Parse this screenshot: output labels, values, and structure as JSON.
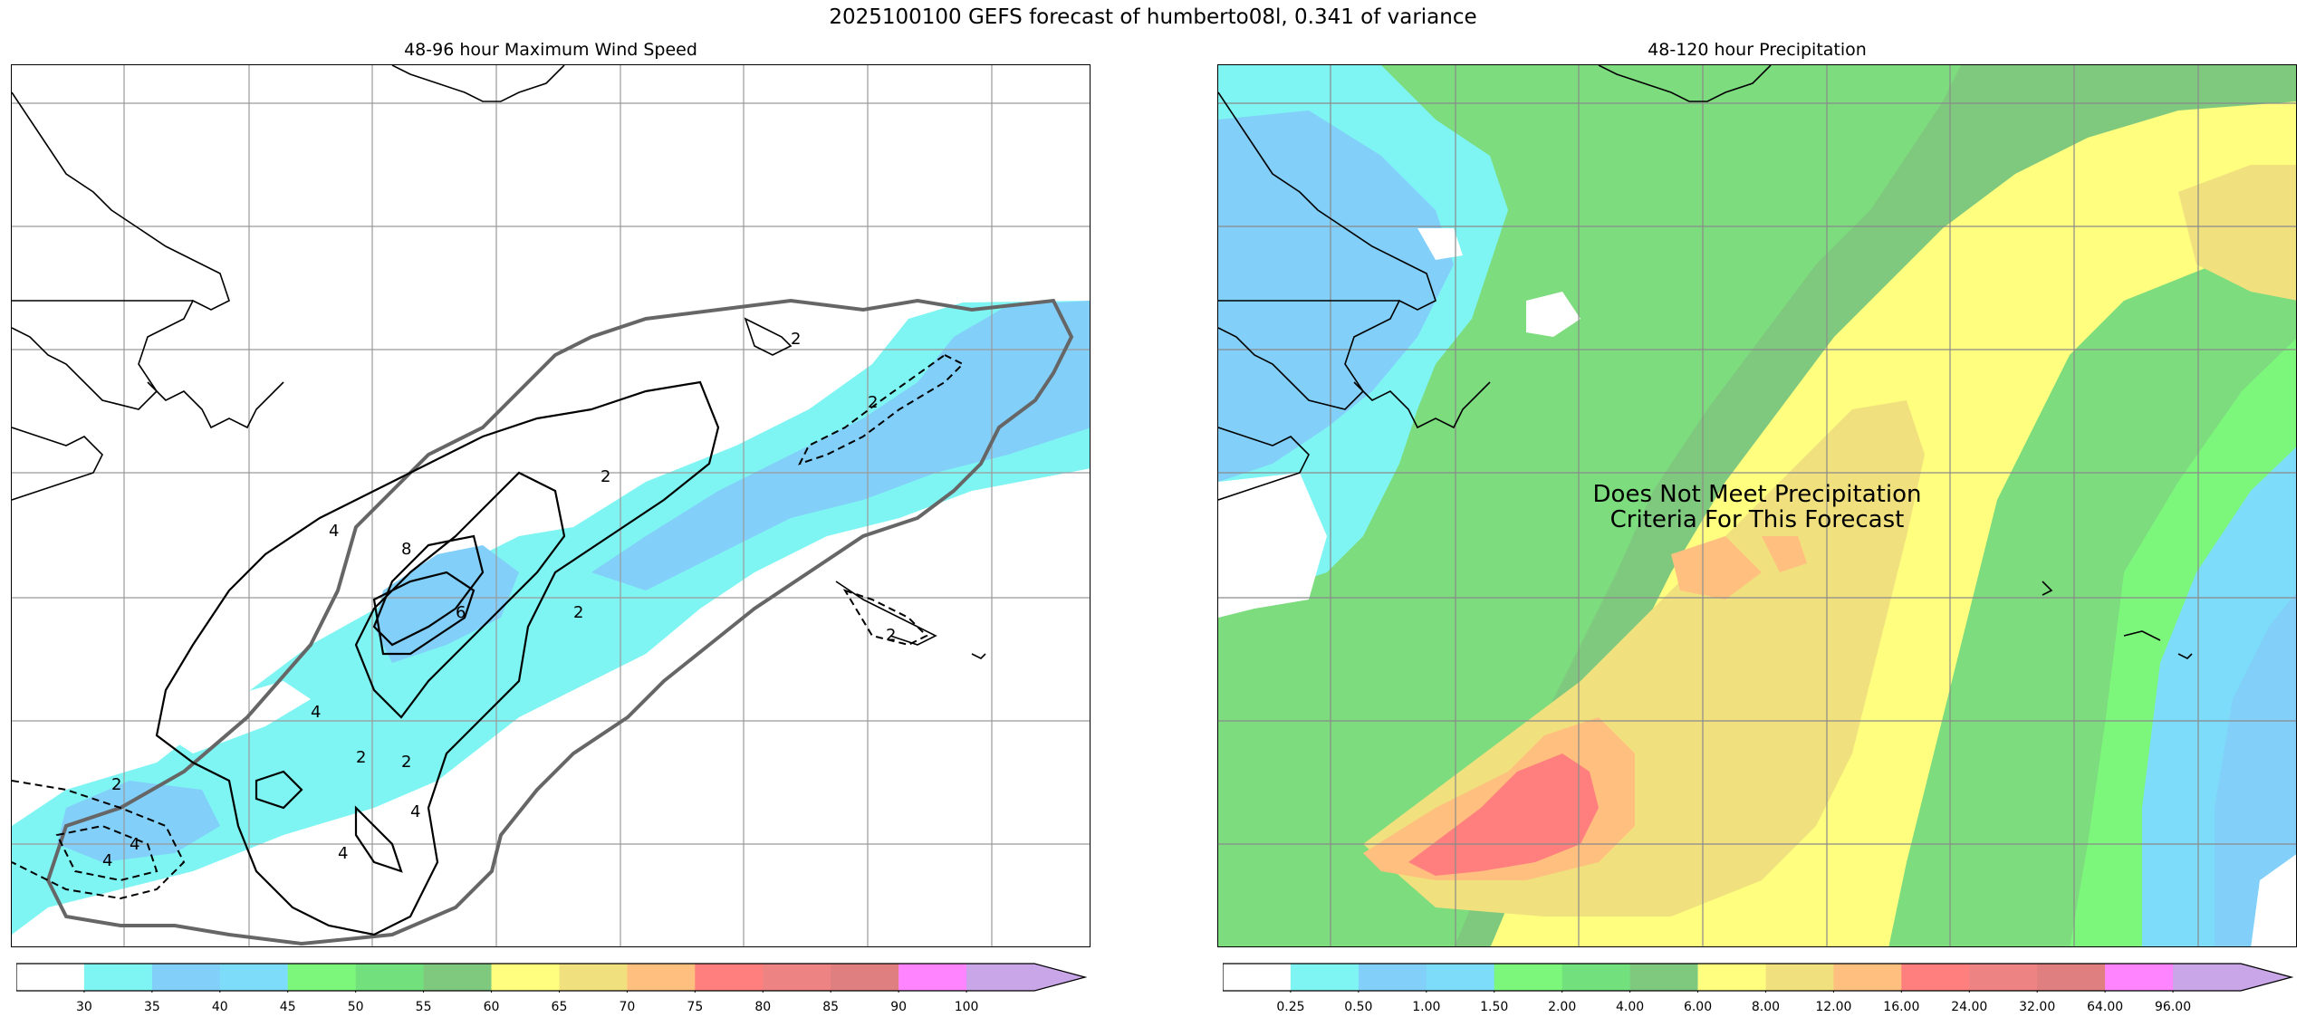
{
  "figure": {
    "title": "2025100100 GEFS forecast of humberto08l, 0.341 of variance"
  },
  "wind_panel": {
    "title": "48-96 hour Maximum Wind Speed",
    "contour_labels": [
      "2",
      "2",
      "2",
      "4",
      "8",
      "6",
      "2",
      "4",
      "2",
      "2",
      "4",
      "4",
      "2",
      "4",
      "4",
      "2"
    ],
    "colorbar": {
      "ticks": [
        "30",
        "35",
        "40",
        "45",
        "50",
        "55",
        "60",
        "65",
        "70",
        "75",
        "80",
        "85",
        "90",
        "100"
      ],
      "colors": [
        "#ffffff",
        "#7ff5f3",
        "#82cff9",
        "#7ddcf9",
        "#7cf77c",
        "#72e17d",
        "#7fc97f",
        "#fffe7f",
        "#f0e07e",
        "#ffc07f",
        "#ff7f7f",
        "#ee8383",
        "#df7f7f",
        "#ff84ff",
        "#c9a6e8"
      ],
      "extend": "max"
    }
  },
  "precip_panel": {
    "title": "48-120 hour Precipitation",
    "note_line1": "Does Not Meet Precipitation",
    "note_line2": "Criteria For This Forecast",
    "colorbar": {
      "ticks": [
        "0.25",
        "0.50",
        "1.00",
        "1.50",
        "2.00",
        "4.00",
        "6.00",
        "8.00",
        "12.00",
        "16.00",
        "24.00",
        "32.00",
        "64.00",
        "96.00"
      ],
      "colors": [
        "#ffffff",
        "#7ff5f3",
        "#82cff9",
        "#7ddcf9",
        "#7cf77c",
        "#72e17d",
        "#7fc97f",
        "#fffe7f",
        "#f0e07e",
        "#ffc07f",
        "#ff7f7f",
        "#ee8383",
        "#df7f7f",
        "#ff84ff",
        "#c9a6e8"
      ],
      "extend": "max"
    }
  }
}
